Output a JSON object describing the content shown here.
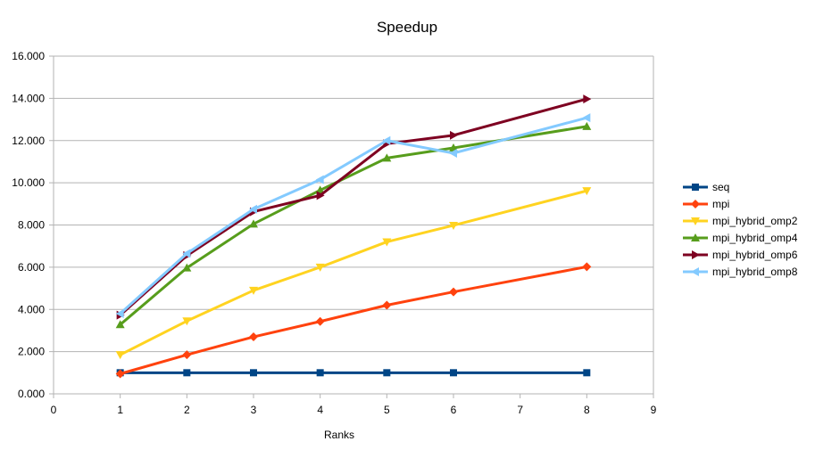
{
  "chart_data": {
    "type": "line",
    "title": "Speedup",
    "xlabel": "Ranks",
    "ylabel": "",
    "xlim": [
      0,
      9
    ],
    "ylim": [
      0,
      16
    ],
    "x_ticks": [
      "0",
      "1",
      "2",
      "3",
      "4",
      "5",
      "6",
      "7",
      "8",
      "9"
    ],
    "y_ticks": [
      "0.000",
      "2.000",
      "4.000",
      "6.000",
      "8.000",
      "10.000",
      "12.000",
      "14.000",
      "16.000"
    ],
    "grid": "horizontal",
    "legend_position": "right",
    "x": [
      1,
      2,
      3,
      4,
      5,
      6,
      8
    ],
    "series": [
      {
        "name": "seq",
        "color": "#004586",
        "marker": "square",
        "values": [
          1.0,
          1.0,
          1.0,
          1.0,
          1.0,
          1.0,
          1.0
        ]
      },
      {
        "name": "mpi",
        "color": "#ff420e",
        "marker": "diamond",
        "values": [
          0.95,
          1.85,
          2.7,
          3.43,
          4.2,
          4.83,
          6.02
        ]
      },
      {
        "name": "mpi_hybrid_omp2",
        "color": "#ffd320",
        "marker": "triangle-down",
        "values": [
          1.85,
          3.45,
          4.9,
          6.0,
          7.2,
          7.98,
          9.62
        ]
      },
      {
        "name": "mpi_hybrid_omp4",
        "color": "#579d1c",
        "marker": "triangle-up",
        "values": [
          3.28,
          5.97,
          8.05,
          9.65,
          11.17,
          11.65,
          12.67
        ]
      },
      {
        "name": "mpi_hybrid_omp6",
        "color": "#7e0021",
        "marker": "triangle-right",
        "values": [
          3.73,
          6.55,
          8.63,
          9.4,
          11.85,
          12.25,
          13.97
        ]
      },
      {
        "name": "mpi_hybrid_omp8",
        "color": "#83caff",
        "marker": "triangle-left",
        "values": [
          3.8,
          6.65,
          8.75,
          10.15,
          12.0,
          11.4,
          13.08
        ]
      }
    ]
  }
}
